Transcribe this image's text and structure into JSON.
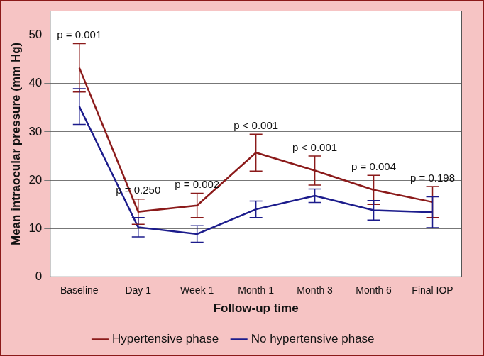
{
  "chart_data": {
    "type": "line",
    "x_label": "Follow-up time",
    "y_label": "Mean intraocular pressure (mm Hg)",
    "categories": [
      "Baseline",
      "Day 1",
      "Week 1",
      "Month 1",
      "Month 3",
      "Month 6",
      "Final IOP"
    ],
    "series": [
      {
        "name": "Hypertensive phase",
        "color": "#8b1a1a",
        "values": [
          43.2,
          13.5,
          14.8,
          25.7,
          22.0,
          18.0,
          15.5
        ],
        "errors": [
          5.0,
          2.6,
          2.5,
          3.8,
          3.0,
          3.0,
          3.2
        ]
      },
      {
        "name": "No hypertensive phase",
        "color": "#1c1c8c",
        "values": [
          35.2,
          10.3,
          8.9,
          14.0,
          16.8,
          13.8,
          13.4
        ],
        "errors": [
          3.7,
          2.0,
          1.7,
          1.7,
          1.4,
          2.0,
          3.2
        ]
      }
    ],
    "annotations": [
      "p = 0.001",
      "p = 0.250",
      "p = 0.002",
      "p < 0.001",
      "p < 0.001",
      "p = 0.004",
      "p = 0.198"
    ],
    "ylim": [
      0,
      55
    ],
    "yticks": [
      0,
      10,
      20,
      30,
      40,
      50
    ],
    "grid": true,
    "legend": "bottom"
  }
}
